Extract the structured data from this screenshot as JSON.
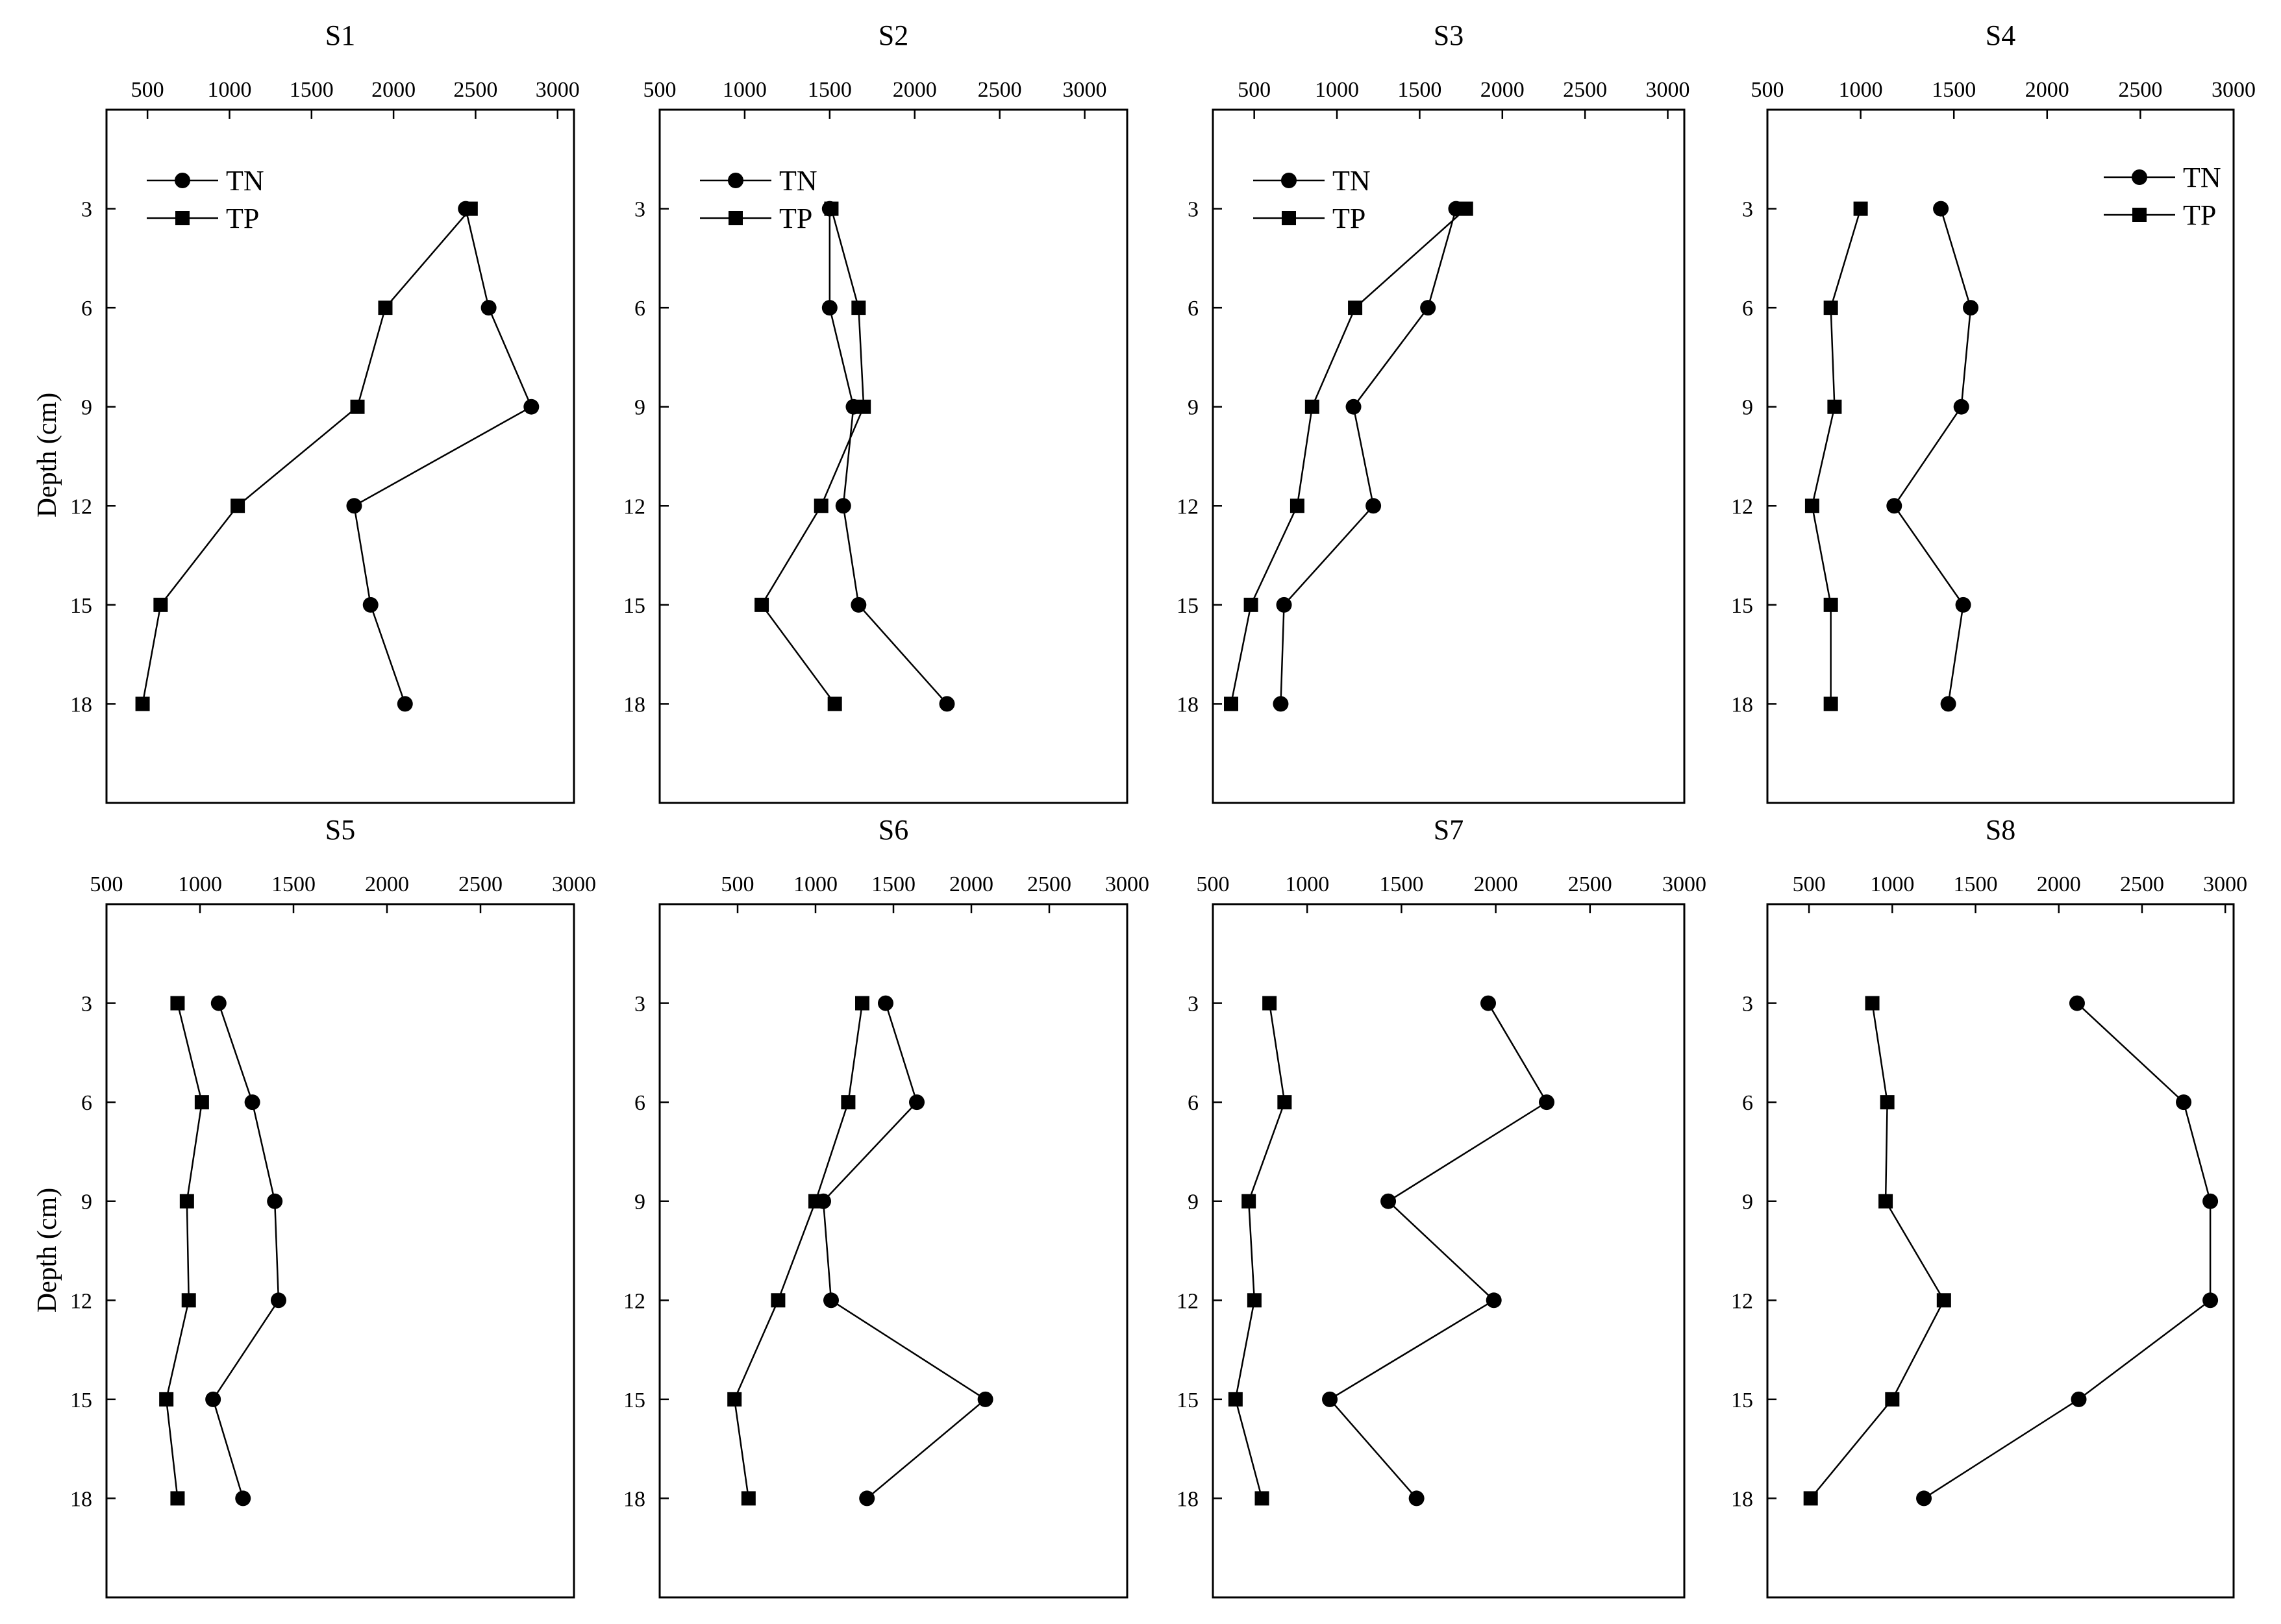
{
  "figure": {
    "ylabel": "Depth (cm)",
    "legend": [
      "TN",
      "TP"
    ]
  },
  "chart_data": [
    {
      "type": "line",
      "title": "S1",
      "xlim": [
        250,
        3100
      ],
      "xticks": [
        500,
        1000,
        1500,
        2000,
        2500,
        3000
      ],
      "ylim": [
        21,
        0
      ],
      "yticks": [
        3,
        6,
        9,
        12,
        15,
        18
      ],
      "legend": "top-left",
      "series": [
        {
          "name": "TN",
          "marker": "circle",
          "points": [
            [
              2440,
              3
            ],
            [
              2580,
              6
            ],
            [
              2840,
              9
            ],
            [
              1760,
              12
            ],
            [
              1860,
              15
            ],
            [
              2070,
              18
            ]
          ]
        },
        {
          "name": "TP",
          "marker": "square",
          "points": [
            [
              2470,
              3
            ],
            [
              1950,
              6
            ],
            [
              1780,
              9
            ],
            [
              1050,
              12
            ],
            [
              580,
              15
            ],
            [
              470,
              18
            ]
          ]
        }
      ]
    },
    {
      "type": "line",
      "title": "S2",
      "xlim": [
        500,
        3250
      ],
      "xticks": [
        500,
        1000,
        1500,
        2000,
        2500,
        3000
      ],
      "ylim": [
        21,
        0
      ],
      "yticks": [
        3,
        6,
        9,
        12,
        15,
        18
      ],
      "legend": "top-left",
      "series": [
        {
          "name": "TN",
          "marker": "circle",
          "points": [
            [
              1500,
              3
            ],
            [
              1500,
              6
            ],
            [
              1640,
              9
            ],
            [
              1580,
              12
            ],
            [
              1670,
              15
            ],
            [
              2190,
              18
            ]
          ]
        },
        {
          "name": "TP",
          "marker": "square",
          "points": [
            [
              1510,
              3
            ],
            [
              1670,
              6
            ],
            [
              1700,
              9
            ],
            [
              1450,
              12
            ],
            [
              1100,
              15
            ],
            [
              1530,
              18
            ]
          ]
        }
      ]
    },
    {
      "type": "line",
      "title": "S3",
      "xlim": [
        250,
        3100
      ],
      "xticks": [
        500,
        1000,
        1500,
        2000,
        2500,
        3000
      ],
      "ylim": [
        21,
        0
      ],
      "yticks": [
        3,
        6,
        9,
        12,
        15,
        18
      ],
      "legend": "top-left",
      "series": [
        {
          "name": "TN",
          "marker": "circle",
          "points": [
            [
              1720,
              3
            ],
            [
              1550,
              6
            ],
            [
              1100,
              9
            ],
            [
              1220,
              12
            ],
            [
              680,
              15
            ],
            [
              660,
              18
            ]
          ]
        },
        {
          "name": "TP",
          "marker": "square",
          "points": [
            [
              1780,
              3
            ],
            [
              1110,
              6
            ],
            [
              850,
              9
            ],
            [
              760,
              12
            ],
            [
              480,
              15
            ],
            [
              360,
              18
            ]
          ]
        }
      ]
    },
    {
      "type": "line",
      "title": "S4",
      "xlim": [
        500,
        3000
      ],
      "xticks": [
        500,
        1000,
        1500,
        2000,
        2500,
        3000
      ],
      "ylim": [
        21,
        0
      ],
      "yticks": [
        3,
        6,
        9,
        12,
        15,
        18
      ],
      "legend": "top-right",
      "series": [
        {
          "name": "TN",
          "marker": "circle",
          "points": [
            [
              1430,
              3
            ],
            [
              1590,
              6
            ],
            [
              1540,
              9
            ],
            [
              1180,
              12
            ],
            [
              1550,
              15
            ],
            [
              1470,
              18
            ]
          ]
        },
        {
          "name": "TP",
          "marker": "square",
          "points": [
            [
              1000,
              3
            ],
            [
              840,
              6
            ],
            [
              860,
              9
            ],
            [
              740,
              12
            ],
            [
              840,
              15
            ],
            [
              840,
              18
            ]
          ]
        }
      ]
    },
    {
      "type": "line",
      "title": "S5",
      "xlim": [
        500,
        3000
      ],
      "xticks": [
        500,
        1000,
        1500,
        2000,
        2500,
        3000
      ],
      "ylim": [
        21,
        0
      ],
      "yticks": [
        3,
        6,
        9,
        12,
        15,
        18
      ],
      "legend": "none",
      "series": [
        {
          "name": "TN",
          "marker": "circle",
          "points": [
            [
              1100,
              3
            ],
            [
              1280,
              6
            ],
            [
              1400,
              9
            ],
            [
              1420,
              12
            ],
            [
              1070,
              15
            ],
            [
              1230,
              18
            ]
          ]
        },
        {
          "name": "TP",
          "marker": "square",
          "points": [
            [
              880,
              3
            ],
            [
              1010,
              6
            ],
            [
              930,
              9
            ],
            [
              940,
              12
            ],
            [
              820,
              15
            ],
            [
              880,
              18
            ]
          ]
        }
      ]
    },
    {
      "type": "line",
      "title": "S6",
      "xlim": [
        0,
        3000
      ],
      "xticks": [
        500,
        1000,
        1500,
        2000,
        2500,
        3000
      ],
      "ylim": [
        21,
        0
      ],
      "yticks": [
        3,
        6,
        9,
        12,
        15,
        18
      ],
      "legend": "none",
      "series": [
        {
          "name": "TN",
          "marker": "circle",
          "points": [
            [
              1450,
              3
            ],
            [
              1650,
              6
            ],
            [
              1050,
              9
            ],
            [
              1100,
              12
            ],
            [
              2090,
              15
            ],
            [
              1330,
              18
            ]
          ]
        },
        {
          "name": "TP",
          "marker": "square",
          "points": [
            [
              1300,
              3
            ],
            [
              1210,
              6
            ],
            [
              1000,
              9
            ],
            [
              760,
              12
            ],
            [
              480,
              15
            ],
            [
              570,
              18
            ]
          ]
        }
      ]
    },
    {
      "type": "line",
      "title": "S7",
      "xlim": [
        500,
        3000
      ],
      "xticks": [
        500,
        1000,
        1500,
        2000,
        2500,
        3000
      ],
      "ylim": [
        21,
        0
      ],
      "yticks": [
        3,
        6,
        9,
        12,
        15,
        18
      ],
      "legend": "none",
      "series": [
        {
          "name": "TN",
          "marker": "circle",
          "points": [
            [
              1960,
              3
            ],
            [
              2270,
              6
            ],
            [
              1430,
              9
            ],
            [
              1990,
              12
            ],
            [
              1120,
              15
            ],
            [
              1580,
              18
            ]
          ]
        },
        {
          "name": "TP",
          "marker": "square",
          "points": [
            [
              800,
              3
            ],
            [
              880,
              6
            ],
            [
              690,
              9
            ],
            [
              720,
              12
            ],
            [
              620,
              15
            ],
            [
              760,
              18
            ]
          ]
        }
      ]
    },
    {
      "type": "line",
      "title": "S8",
      "xlim": [
        250,
        3050
      ],
      "xticks": [
        500,
        1000,
        1500,
        2000,
        2500,
        3000
      ],
      "ylim": [
        21,
        0
      ],
      "yticks": [
        3,
        6,
        9,
        12,
        15,
        18
      ],
      "legend": "none",
      "series": [
        {
          "name": "TN",
          "marker": "circle",
          "points": [
            [
              2110,
              3
            ],
            [
              2750,
              6
            ],
            [
              2910,
              9
            ],
            [
              2910,
              12
            ],
            [
              2120,
              15
            ],
            [
              1190,
              18
            ]
          ]
        },
        {
          "name": "TP",
          "marker": "square",
          "points": [
            [
              880,
              3
            ],
            [
              970,
              6
            ],
            [
              960,
              9
            ],
            [
              1310,
              12
            ],
            [
              1000,
              15
            ],
            [
              510,
              18
            ]
          ]
        }
      ]
    }
  ]
}
